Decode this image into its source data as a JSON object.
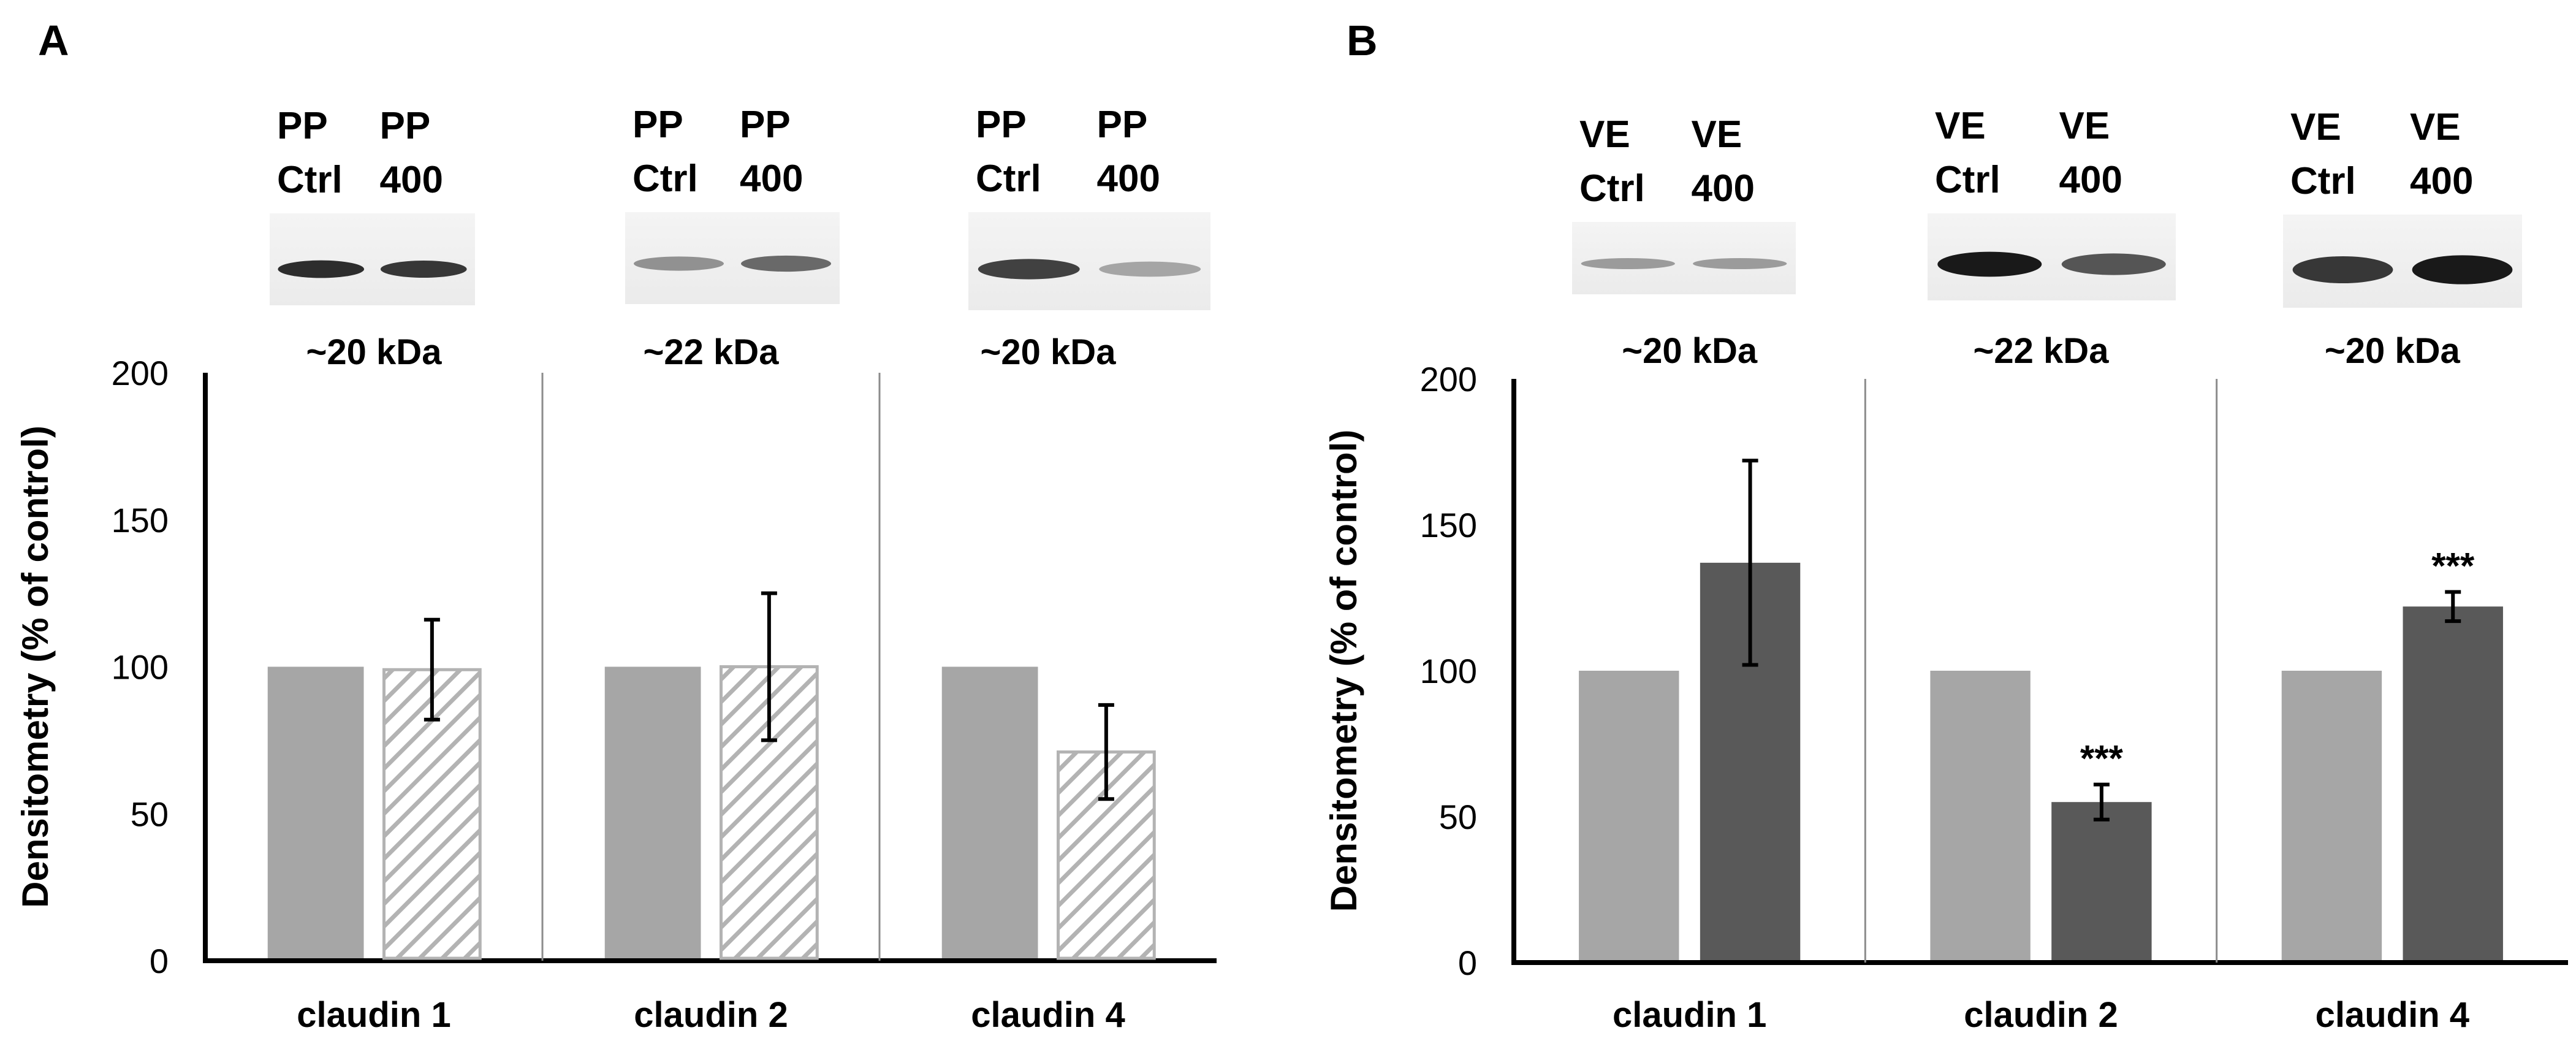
{
  "panels": [
    {
      "label": "A",
      "blots": [
        {
          "lanes": [
            "PP\nCtrl",
            "PP\n400"
          ],
          "mw": "~20 kDa",
          "intensity": [
            0.85,
            0.8
          ]
        },
        {
          "lanes": [
            "PP\nCtrl",
            "PP\n400"
          ],
          "mw": "~22 kDa",
          "intensity": [
            0.35,
            0.55
          ]
        },
        {
          "lanes": [
            "PP\nCtrl",
            "PP\n400"
          ],
          "mw": "~20 kDa",
          "intensity": [
            0.75,
            0.25
          ]
        }
      ]
    },
    {
      "label": "B",
      "blots": [
        {
          "lanes": [
            "VE\nCtrl",
            "VE\n400"
          ],
          "mw": "~20 kDa",
          "intensity": [
            0.3,
            0.3
          ]
        },
        {
          "lanes": [
            "VE\nCtrl",
            "VE\n400"
          ],
          "mw": "~22 kDa",
          "intensity": [
            0.95,
            0.65
          ]
        },
        {
          "lanes": [
            "VE\nCtrl",
            "VE\n400"
          ],
          "mw": "~20 kDa",
          "intensity": [
            0.8,
            0.95
          ]
        }
      ]
    }
  ],
  "chart_data": [
    {
      "type": "bar",
      "panel": "A",
      "ylabel": "Densitometry (% of control)",
      "ylim": [
        0,
        200
      ],
      "yticks": [
        0,
        50,
        100,
        150,
        200
      ],
      "categories": [
        "claudin 1",
        "claudin 2",
        "claudin 4"
      ],
      "series": [
        {
          "name": "PP Ctrl",
          "values": [
            100,
            100,
            100
          ],
          "errors": [
            0,
            0,
            0
          ],
          "color": "#a6a6a6",
          "pattern": "solid"
        },
        {
          "name": "PP 400",
          "values": [
            99,
            100,
            71
          ],
          "errors": [
            17,
            25,
            16
          ],
          "color": "#bfbfbf",
          "pattern": "hatch"
        }
      ],
      "annotations": []
    },
    {
      "type": "bar",
      "panel": "B",
      "ylabel": "Densitometry (% of control)",
      "ylim": [
        0,
        200
      ],
      "yticks": [
        0,
        50,
        100,
        150,
        200
      ],
      "categories": [
        "claudin 1",
        "claudin 2",
        "claudin 4"
      ],
      "series": [
        {
          "name": "VE Ctrl",
          "values": [
            100,
            100,
            100
          ],
          "errors": [
            0,
            0,
            0
          ],
          "color": "#a6a6a6",
          "pattern": "solid"
        },
        {
          "name": "VE 400",
          "values": [
            137,
            55,
            122
          ],
          "errors": [
            35,
            6,
            5
          ],
          "color": "#595959",
          "pattern": "solid"
        }
      ],
      "annotations": [
        {
          "category": "claudin 2",
          "series": "VE 400",
          "text": "***"
        },
        {
          "category": "claudin 4",
          "series": "VE 400",
          "text": "***"
        }
      ]
    }
  ]
}
